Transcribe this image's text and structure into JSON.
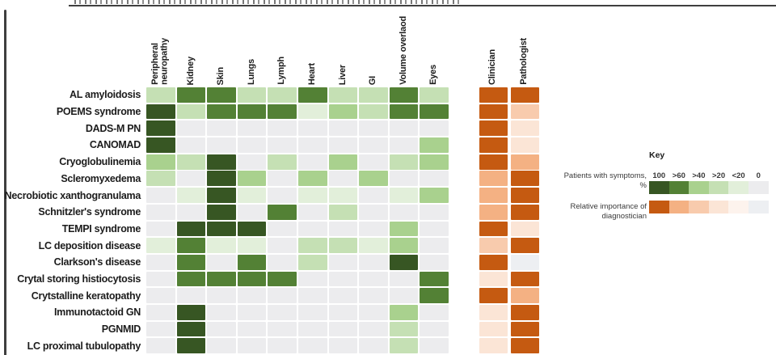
{
  "chart_data": {
    "type": "heatmap",
    "symptom_columns": [
      "Peripheral\nneuropathy",
      "Kidney",
      "Skin",
      "Lungs",
      "Lymph",
      "Heart",
      "Liver",
      "GI",
      "Volume overlaod",
      "Eyes"
    ],
    "diagnostician_columns": [
      "Clinician",
      "Pathologist"
    ],
    "green_levels_order": [
      "100",
      ">60",
      ">40",
      ">20",
      "<20",
      "0"
    ],
    "green_palette": {
      "100": "#375623",
      ">60": "#538135",
      ">40": "#a9d18e",
      ">20": "#c5e0b4",
      "<20": "#e2efda",
      "0": "#ececee"
    },
    "orange_levels_order": [
      "5",
      "4",
      "3",
      "2",
      "1",
      "0"
    ],
    "orange_palette": {
      "5": "#c55a11",
      "4": "#f4b183",
      "3": "#f8cbad",
      "2": "#fbe5d6",
      "1": "#fdf3ed",
      "0": "#edeff2"
    },
    "rows": [
      {
        "name": "AL amyloidosis",
        "symptoms": [
          ">20",
          ">60",
          ">60",
          ">20",
          ">20",
          ">60",
          ">20",
          ">20",
          ">60",
          ">20"
        ],
        "clinician": "5",
        "pathologist": "5"
      },
      {
        "name": "POEMS syndrome",
        "symptoms": [
          "100",
          ">20",
          ">60",
          ">60",
          ">60",
          "<20",
          ">40",
          ">20",
          ">60",
          ">60"
        ],
        "clinician": "5",
        "pathologist": "3"
      },
      {
        "name": "DADS-M PN",
        "symptoms": [
          "100",
          "0",
          "0",
          "0",
          "0",
          "0",
          "0",
          "0",
          "0",
          "0"
        ],
        "clinician": "5",
        "pathologist": "2"
      },
      {
        "name": "CANOMAD",
        "symptoms": [
          "100",
          "0",
          "0",
          "0",
          "0",
          "0",
          "0",
          "0",
          "0",
          ">40"
        ],
        "clinician": "5",
        "pathologist": "2"
      },
      {
        "name": "Cryoglobulinemia",
        "symptoms": [
          ">40",
          ">20",
          "100",
          "0",
          ">20",
          "0",
          ">40",
          "0",
          ">20",
          ">40"
        ],
        "clinician": "5",
        "pathologist": "4"
      },
      {
        "name": "Scleromyxedema",
        "symptoms": [
          ">20",
          "0",
          "100",
          ">40",
          "0",
          ">40",
          "0",
          ">40",
          "0",
          "0"
        ],
        "clinician": "4",
        "pathologist": "5"
      },
      {
        "name": "Necrobiotic xanthogranulama",
        "symptoms": [
          "0",
          "<20",
          "100",
          "<20",
          "0",
          "<20",
          "<20",
          "0",
          "<20",
          ">40"
        ],
        "clinician": "4",
        "pathologist": "5"
      },
      {
        "name": "Schnitzler's syndrome",
        "symptoms": [
          "0",
          "0",
          "100",
          "0",
          ">60",
          "0",
          ">20",
          "0",
          "0",
          "0"
        ],
        "clinician": "4",
        "pathologist": "5"
      },
      {
        "name": "TEMPI syndrome",
        "symptoms": [
          "0",
          "100",
          "100",
          "100",
          "0",
          "0",
          "0",
          "0",
          ">40",
          "0"
        ],
        "clinician": "5",
        "pathologist": "2"
      },
      {
        "name": "LC deposition disease",
        "symptoms": [
          "<20",
          ">60",
          "<20",
          "<20",
          "0",
          ">20",
          ">20",
          "<20",
          ">40",
          "0"
        ],
        "clinician": "3",
        "pathologist": "5"
      },
      {
        "name": "Clarkson's disease",
        "symptoms": [
          "0",
          ">60",
          "0",
          ">60",
          "0",
          ">20",
          "0",
          "0",
          "100",
          "0"
        ],
        "clinician": "5",
        "pathologist": "0"
      },
      {
        "name": "Crytal storing histiocytosis",
        "symptoms": [
          "0",
          ">60",
          ">60",
          ">60",
          ">60",
          "0",
          "0",
          "0",
          "0",
          ">60"
        ],
        "clinician": "2",
        "pathologist": "5"
      },
      {
        "name": "Crytstalline keratopathy",
        "symptoms": [
          "0",
          "0",
          "0",
          "0",
          "0",
          "0",
          "0",
          "0",
          "0",
          ">60"
        ],
        "clinician": "5",
        "pathologist": "4"
      },
      {
        "name": "Immunotactoid GN",
        "symptoms": [
          "0",
          "100",
          "0",
          "0",
          "0",
          "0",
          "0",
          "0",
          ">40",
          "0"
        ],
        "clinician": "2",
        "pathologist": "5"
      },
      {
        "name": "PGNMID",
        "symptoms": [
          "0",
          "100",
          "0",
          "0",
          "0",
          "0",
          "0",
          "0",
          ">20",
          "0"
        ],
        "clinician": "2",
        "pathologist": "5"
      },
      {
        "name": "LC proximal tubulopathy",
        "symptoms": [
          "0",
          "100",
          "0",
          "0",
          "0",
          "0",
          "0",
          "0",
          ">20",
          "0"
        ],
        "clinician": "2",
        "pathologist": "5"
      }
    ]
  },
  "key": {
    "title": "Key",
    "symptoms_label": "Patients with symptoms, %",
    "scale_labels": [
      "100",
      ">60",
      ">40",
      ">20",
      "<20",
      "0"
    ],
    "green_swatch_levels": [
      "100",
      ">60",
      ">40",
      ">20",
      "<20",
      "0"
    ],
    "orange_swatch_levels": [
      "5",
      "4",
      "3",
      "2",
      "1",
      "0"
    ],
    "importance_label_lines": [
      "Relative importance of",
      "diagnostician"
    ]
  }
}
